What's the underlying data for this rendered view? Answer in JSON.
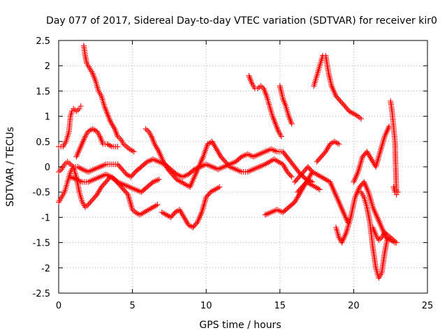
{
  "chart_data": {
    "type": "scatter",
    "title": "Day 077 of 2017, Sidereal Day-to-day VTEC variation (SDTVAR) for receiver kir0",
    "xlabel": "GPS time / hours",
    "ylabel": "SDTVAR / TECUs",
    "xlim": [
      0,
      25
    ],
    "ylim": [
      -2.5,
      2.5
    ],
    "x_ticks": [
      0,
      5,
      10,
      15,
      20,
      25
    ],
    "x_tick_labels": [
      "0",
      "5",
      "10",
      "15",
      "20",
      "25"
    ],
    "y_ticks": [
      -2.5,
      -2,
      -1.5,
      -1,
      -0.5,
      0,
      0.5,
      1,
      1.5,
      2,
      2.5
    ],
    "y_tick_labels": [
      "-2.5",
      "-2",
      "-1.5",
      "-1",
      "-0.5",
      "0",
      "0.5",
      "1",
      "1.5",
      "2",
      "2.5"
    ],
    "grid": true,
    "marker": "plus",
    "color": "#ff0000",
    "series": [
      {
        "x": [
          0.0,
          0.3,
          0.5,
          0.7,
          0.8,
          0.9,
          1.0,
          1.2,
          1.4,
          1.5
        ],
        "y": [
          0.4,
          0.4,
          0.5,
          0.7,
          1.0,
          1.1,
          1.15,
          1.1,
          1.15,
          1.2
        ]
      },
      {
        "x": [
          1.7,
          1.8,
          1.9,
          2.1,
          2.3,
          2.5,
          2.7,
          2.9,
          3.1,
          3.3,
          3.5,
          3.8,
          4.0,
          4.2,
          4.4,
          4.6,
          4.8,
          5.1
        ],
        "y": [
          2.4,
          2.2,
          2.05,
          1.95,
          1.85,
          1.7,
          1.5,
          1.4,
          1.2,
          1.05,
          0.9,
          0.75,
          0.6,
          0.55,
          0.45,
          0.4,
          0.35,
          0.3
        ]
      },
      {
        "x": [
          1.2,
          1.5,
          1.8,
          2.0,
          2.3,
          2.6,
          2.8,
          3.0,
          3.3,
          3.6,
          4.0
        ],
        "y": [
          0.2,
          0.4,
          0.6,
          0.7,
          0.75,
          0.7,
          0.6,
          0.45,
          0.45,
          0.4,
          0.4
        ]
      },
      {
        "x": [
          0.0,
          0.2,
          0.4,
          0.6,
          0.8,
          1.0,
          1.3,
          1.6,
          2.0,
          2.4,
          2.8,
          3.2,
          3.6,
          4.0,
          4.3,
          4.6,
          4.9,
          5.2,
          5.6,
          6.0,
          6.4,
          6.8,
          7.2,
          7.6,
          8.0,
          8.4,
          8.8,
          9.2,
          9.6,
          10.0,
          10.4,
          10.8,
          11.2,
          11.6,
          12.0,
          12.4,
          12.8,
          13.2,
          13.6,
          14.0,
          14.4,
          14.8,
          15.2,
          15.6,
          16.0,
          16.4,
          16.8,
          17.2
        ],
        "y": [
          -0.1,
          -0.05,
          0.05,
          0.1,
          0.05,
          0.0,
          0.0,
          -0.05,
          -0.1,
          -0.05,
          0.0,
          0.05,
          0.05,
          0.05,
          -0.05,
          -0.15,
          -0.2,
          -0.1,
          0.0,
          0.1,
          0.15,
          0.1,
          0.05,
          -0.05,
          -0.15,
          -0.2,
          -0.15,
          -0.05,
          0.0,
          0.05,
          0.0,
          -0.05,
          0.0,
          0.05,
          0.1,
          0.2,
          0.25,
          0.2,
          0.25,
          0.3,
          0.35,
          0.3,
          0.3,
          0.15,
          0.0,
          -0.15,
          -0.25,
          -0.3
        ]
      },
      {
        "x": [
          0.0,
          0.2,
          0.4,
          0.6,
          0.8,
          1.0,
          1.2,
          1.4,
          1.6,
          1.8,
          2.0,
          2.3,
          2.6,
          2.9,
          3.2,
          3.5,
          3.8,
          4.1,
          4.4,
          4.7,
          5.0,
          5.2,
          5.5,
          5.8,
          6.1,
          6.4,
          6.7
        ],
        "y": [
          -0.7,
          -0.6,
          -0.5,
          -0.3,
          -0.1,
          0.0,
          -0.2,
          -0.5,
          -0.7,
          -0.8,
          -0.75,
          -0.65,
          -0.55,
          -0.4,
          -0.3,
          -0.2,
          -0.25,
          -0.35,
          -0.45,
          -0.55,
          -0.85,
          -0.9,
          -0.95,
          -0.9,
          -0.85,
          -0.8,
          -0.75
        ]
      },
      {
        "x": [
          0.8,
          1.2,
          1.6,
          2.0,
          2.4,
          2.8,
          3.2,
          3.6,
          4.0,
          4.4,
          4.8,
          5.2,
          5.6,
          6.0,
          6.4,
          6.8
        ],
        "y": [
          -0.2,
          -0.25,
          -0.3,
          -0.3,
          -0.25,
          -0.2,
          -0.15,
          -0.2,
          -0.3,
          -0.35,
          -0.4,
          -0.45,
          -0.5,
          -0.4,
          -0.3,
          -0.25
        ]
      },
      {
        "x": [
          5.9,
          6.1,
          6.3,
          6.5,
          6.8,
          7.1,
          7.4,
          7.7,
          8.0,
          8.3,
          8.6,
          8.9,
          9.2,
          9.5,
          9.8,
          10.1,
          10.4,
          10.7,
          11.0,
          11.3,
          11.6,
          12.0,
          12.4,
          12.8,
          13.2,
          13.6,
          14.0,
          14.3,
          14.6,
          14.9,
          15.2,
          15.5,
          15.8
        ],
        "y": [
          0.75,
          0.7,
          0.6,
          0.45,
          0.3,
          0.1,
          -0.05,
          -0.15,
          -0.25,
          -0.3,
          -0.35,
          -0.4,
          -0.2,
          0.0,
          0.2,
          0.45,
          0.5,
          0.35,
          0.2,
          0.1,
          0.0,
          -0.05,
          -0.1,
          -0.1,
          -0.05,
          0.0,
          0.05,
          0.1,
          0.15,
          0.1,
          0.05,
          -0.1,
          -0.2
        ]
      },
      {
        "x": [
          7.0,
          7.3,
          7.6,
          7.9,
          8.2,
          8.5,
          8.8,
          9.1,
          9.4,
          9.7,
          10.0,
          10.3,
          10.6,
          10.9
        ],
        "y": [
          -0.9,
          -0.95,
          -1.0,
          -0.9,
          -0.85,
          -1.0,
          -1.15,
          -1.2,
          -1.1,
          -0.9,
          -0.6,
          -0.5,
          -0.45,
          -0.4
        ]
      },
      {
        "x": [
          12.9,
          13.1,
          13.3,
          13.5,
          13.7,
          13.9,
          14.1,
          14.3,
          14.5,
          14.7,
          14.9,
          15.1
        ],
        "y": [
          1.8,
          1.65,
          1.55,
          1.55,
          1.6,
          1.55,
          1.4,
          1.2,
          1.0,
          0.85,
          0.7,
          0.6
        ]
      },
      {
        "x": [
          15.0,
          15.2,
          15.4,
          15.6,
          15.8
        ],
        "y": [
          1.6,
          1.35,
          1.2,
          1.0,
          0.85
        ]
      },
      {
        "x": [
          14.0,
          14.4,
          14.8,
          15.2,
          15.6,
          16.0,
          16.4,
          16.8,
          17.2
        ],
        "y": [
          -0.95,
          -0.9,
          -0.85,
          -0.9,
          -0.8,
          -0.7,
          -0.5,
          -0.3,
          -0.1
        ]
      },
      {
        "x": [
          16.0,
          16.3,
          16.6,
          16.9,
          17.2,
          17.5,
          17.8,
          18.1,
          18.4,
          18.7,
          19.0,
          19.3,
          19.6
        ],
        "y": [
          -0.3,
          -0.2,
          -0.1,
          0.0,
          -0.1,
          -0.15,
          -0.2,
          -0.25,
          -0.3,
          -0.5,
          -0.7,
          -0.9,
          -1.1
        ]
      },
      {
        "x": [
          17.3,
          17.5,
          17.7,
          17.9,
          18.1,
          18.3,
          18.5,
          18.8,
          19.1,
          19.4,
          19.7,
          20.0,
          20.3,
          20.5
        ],
        "y": [
          1.6,
          1.8,
          2.0,
          2.2,
          2.2,
          1.85,
          1.6,
          1.4,
          1.3,
          1.2,
          1.1,
          1.05,
          1.0,
          0.95
        ]
      },
      {
        "x": [
          17.5,
          17.8,
          18.1,
          18.4,
          18.7,
          19.0
        ],
        "y": [
          0.1,
          0.2,
          0.3,
          0.45,
          0.5,
          0.45
        ]
      },
      {
        "x": [
          18.8,
          19.0,
          19.2,
          19.5,
          19.8,
          20.1,
          20.4,
          20.7,
          21.0,
          21.3,
          21.6,
          21.9,
          22.2,
          22.5,
          22.8
        ],
        "y": [
          -1.2,
          -1.4,
          -1.5,
          -1.3,
          -1.0,
          -0.6,
          -0.4,
          -0.3,
          -0.5,
          -0.8,
          -1.0,
          -1.2,
          -1.4,
          -1.45,
          -1.5
        ]
      },
      {
        "x": [
          20.0,
          20.3,
          20.6,
          20.9,
          21.2,
          21.5,
          21.8,
          22.1,
          22.4
        ],
        "y": [
          -0.3,
          -0.1,
          0.2,
          0.3,
          0.15,
          0.0,
          0.3,
          0.6,
          0.8
        ]
      },
      {
        "x": [
          20.5,
          20.7,
          20.9,
          21.1,
          21.3,
          21.5,
          21.7,
          21.9,
          22.1,
          22.3
        ],
        "y": [
          -0.5,
          -0.6,
          -0.8,
          -1.1,
          -1.6,
          -2.0,
          -2.2,
          -2.1,
          -1.7,
          -1.4
        ]
      },
      {
        "x": [
          21.3,
          21.5,
          21.7,
          21.9,
          22.1,
          22.3,
          22.5,
          22.7,
          22.9
        ],
        "y": [
          -1.2,
          -1.35,
          -1.45,
          -1.4,
          -1.3,
          -1.35,
          -1.4,
          -1.45,
          -1.5
        ]
      },
      {
        "x": [
          22.5,
          22.6,
          22.7,
          22.8,
          22.9
        ],
        "y": [
          1.3,
          1.1,
          0.8,
          0.5,
          -0.5
        ]
      },
      {
        "x": [
          22.7,
          22.8,
          22.9,
          23.0
        ],
        "y": [
          -0.4,
          -0.5,
          -0.55,
          -0.5
        ]
      },
      {
        "x": [
          16.2,
          16.5,
          16.8,
          17.1,
          17.4,
          17.7
        ],
        "y": [
          -0.5,
          -0.4,
          -0.3,
          -0.35,
          -0.4,
          -0.45
        ]
      }
    ]
  }
}
